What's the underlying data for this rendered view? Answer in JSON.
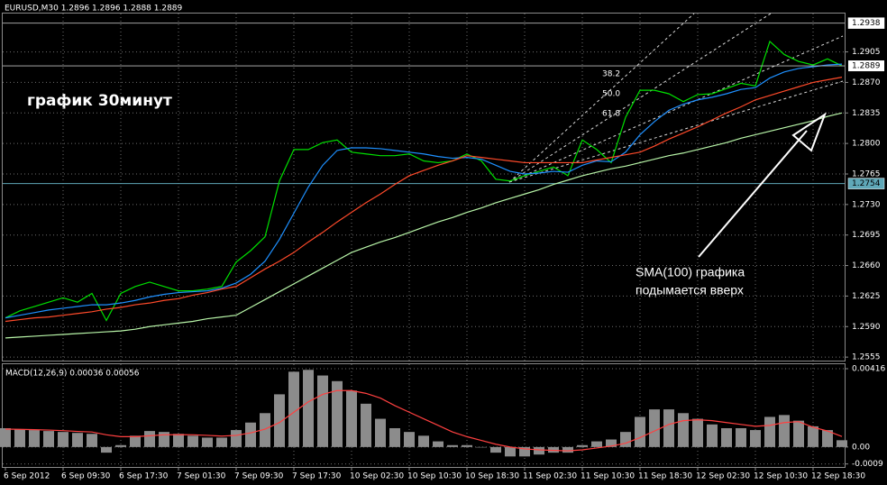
{
  "chart_data": [
    {
      "type": "line",
      "title": "EURUSD,M30  1.2896 1.2896 1.2888 1.2889",
      "categories": [
        "6 Sep 2012",
        null,
        null,
        null,
        "6 Sep 09:30",
        null,
        null,
        null,
        "6 Sep 17:30",
        null,
        null,
        null,
        "7 Sep 01:30",
        null,
        null,
        null,
        "7 Sep 09:30",
        null,
        null,
        null,
        "7 Sep 17:30",
        null,
        null,
        null,
        "10 Sep 02:30",
        null,
        null,
        null,
        "10 Sep 10:30",
        null,
        null,
        null,
        "10 Sep 18:30",
        null,
        null,
        null,
        "11 Sep 02:30",
        null,
        null,
        null,
        "11 Sep 10:30",
        null,
        null,
        null,
        "11 Sep 18:30",
        null,
        null,
        null,
        "12 Sep 02:30",
        null,
        null,
        null,
        "12 Sep 10:30",
        null,
        null,
        null,
        "12 Sep 18:30",
        null,
        null
      ],
      "series": [
        {
          "color": "#00e000",
          "values": [
            1.26,
            1.2608,
            1.2613,
            1.2618,
            1.2623,
            1.2618,
            1.2628,
            1.2597,
            1.2628,
            1.2636,
            1.2641,
            1.2636,
            1.2631,
            1.2631,
            1.2633,
            1.2636,
            1.2664,
            1.2677,
            1.2693,
            1.2757,
            1.2793,
            1.2793,
            1.2801,
            1.2804,
            1.279,
            1.2788,
            1.2786,
            1.2786,
            1.2788,
            1.278,
            1.2778,
            1.278,
            1.2788,
            1.278,
            1.2759,
            1.2757,
            1.2763,
            1.2768,
            1.2773,
            1.2763,
            1.2804,
            1.2793,
            1.2778,
            1.283,
            1.2861,
            1.2861,
            1.2857,
            1.2848,
            1.2856,
            1.2857,
            1.2863,
            1.2869,
            1.2866,
            1.2917,
            1.2902,
            1.2894,
            1.289,
            1.2897,
            1.2889
          ]
        },
        {
          "color": "#1e90ff",
          "values": [
            1.26,
            1.2603,
            1.2606,
            1.2609,
            1.2611,
            1.2613,
            1.2615,
            1.2615,
            1.2617,
            1.262,
            1.2624,
            1.2627,
            1.2629,
            1.263,
            1.2631,
            1.2634,
            1.264,
            1.265,
            1.2665,
            1.269,
            1.272,
            1.275,
            1.2775,
            1.2792,
            1.2795,
            1.2795,
            1.2794,
            1.2792,
            1.279,
            1.2788,
            1.2785,
            1.2783,
            1.2784,
            1.2782,
            1.2775,
            1.2768,
            1.2765,
            1.2766,
            1.2768,
            1.2767,
            1.2775,
            1.278,
            1.2779,
            1.279,
            1.281,
            1.2825,
            1.2838,
            1.2845,
            1.285,
            1.2853,
            1.2857,
            1.2862,
            1.2864,
            1.2875,
            1.2882,
            1.2886,
            1.2888,
            1.289,
            1.2891
          ]
        },
        {
          "color": "#ff4a2a",
          "values": [
            1.2596,
            1.2598,
            1.26,
            1.2601,
            1.2603,
            1.2605,
            1.2607,
            1.261,
            1.2612,
            1.2615,
            1.2617,
            1.262,
            1.2622,
            1.2626,
            1.2629,
            1.2633,
            1.2636,
            1.2646,
            1.2656,
            1.2665,
            1.2675,
            1.2687,
            1.2698,
            1.271,
            1.2721,
            1.2732,
            1.2742,
            1.2753,
            1.2763,
            1.2769,
            1.2775,
            1.278,
            1.2786,
            1.2784,
            1.2782,
            1.278,
            1.2778,
            1.2778,
            1.2778,
            1.2778,
            1.2778,
            1.2781,
            1.2784,
            1.2787,
            1.279,
            1.2797,
            1.2805,
            1.2812,
            1.2819,
            1.2827,
            1.2835,
            1.2842,
            1.285,
            1.2855,
            1.286,
            1.2865,
            1.287,
            1.2873,
            1.2876
          ]
        },
        {
          "color": "#b8f5a8",
          "values": [
            1.2577,
            1.2578,
            1.2579,
            1.258,
            1.2581,
            1.2582,
            1.2583,
            1.2584,
            1.2585,
            1.2587,
            1.259,
            1.2592,
            1.2594,
            1.2596,
            1.2599,
            1.2601,
            1.2603,
            1.2612,
            1.2621,
            1.263,
            1.2639,
            1.2648,
            1.2657,
            1.2666,
            1.2675,
            1.2681,
            1.2687,
            1.2692,
            1.2698,
            1.2704,
            1.271,
            1.2715,
            1.2721,
            1.2726,
            1.2732,
            1.2737,
            1.2742,
            1.2747,
            1.2753,
            1.2758,
            1.2763,
            1.2767,
            1.2771,
            1.2774,
            1.2778,
            1.2782,
            1.2786,
            1.2789,
            1.2793,
            1.2797,
            1.2801,
            1.2806,
            1.281,
            1.2814,
            1.2818,
            1.2822,
            1.2826,
            1.2831,
            1.2835
          ]
        }
      ],
      "ylim": [
        1.2551,
        1.2949
      ],
      "yticks": [
        1.2905,
        {
          "value": 1.287,
          "label": "1.2870"
        },
        1.2835,
        {
          "value": 1.28,
          "label": "1.2800"
        },
        1.2765,
        {
          "value": 1.273,
          "label": "1.2730"
        },
        1.2695,
        {
          "value": 1.266,
          "label": "1.2660"
        },
        1.2625,
        {
          "value": 1.259,
          "label": "1.2590"
        },
        1.2555
      ],
      "grid": true,
      "hlines": [
        {
          "value": 1.2938,
          "color": "#a0a0a0",
          "box": "#ffffff"
        },
        {
          "value": 1.2754,
          "color": "#5fa8b8",
          "box": "#5fa8b8"
        }
      ],
      "last_price": 1.2889,
      "annotations": [
        "график 30минут",
        "SMA(100) графика",
        "подымается вверх"
      ],
      "fib_levels": [
        "38.2",
        "50.0",
        "61.8"
      ]
    },
    {
      "type": "bar",
      "title": "MACD(12,26,9) 0.00036 0.00056",
      "color": "#8c8c8c",
      "values": [
        0.001,
        0.00095,
        0.0009,
        0.00085,
        0.0008,
        0.00075,
        0.0007,
        -0.0003,
        0.0001,
        0.0006,
        0.00085,
        0.0008,
        0.0007,
        0.0006,
        0.0005,
        0.0005,
        0.0009,
        0.0013,
        0.0018,
        0.0028,
        0.004,
        0.0041,
        0.0038,
        0.0035,
        0.003,
        0.0023,
        0.0015,
        0.001,
        0.0008,
        0.0006,
        0.0003,
        0.0001,
        0.0001,
        0.0,
        -0.0003,
        -0.0005,
        -0.0005,
        -0.0004,
        -0.0003,
        -0.0003,
        0.0001,
        0.0003,
        0.0004,
        0.0008,
        0.0016,
        0.002,
        0.002,
        0.0018,
        0.0015,
        0.0012,
        0.001,
        0.001,
        0.0009,
        0.0016,
        0.0017,
        0.0014,
        0.0011,
        0.0009,
        0.00036
      ],
      "signal_color": "#ff4040",
      "signal": [
        0.00095,
        0.00094,
        0.00092,
        0.0009,
        0.00087,
        0.00083,
        0.0008,
        0.00065,
        0.00055,
        0.00055,
        0.0006,
        0.00065,
        0.00066,
        0.00065,
        0.00062,
        0.00058,
        0.00062,
        0.00075,
        0.00095,
        0.0013,
        0.00185,
        0.0024,
        0.0028,
        0.003,
        0.003,
        0.00285,
        0.0026,
        0.0022,
        0.00185,
        0.0015,
        0.00115,
        0.0008,
        0.00055,
        0.00035,
        0.00015,
        0.0,
        -0.0001,
        -0.00015,
        -0.00018,
        -0.0002,
        -0.00015,
        -5e-05,
        5e-05,
        0.0002,
        0.0005,
        0.00085,
        0.0012,
        0.0014,
        0.00145,
        0.0014,
        0.0013,
        0.0012,
        0.0011,
        0.00115,
        0.0013,
        0.00135,
        0.00105,
        0.00085,
        0.00056
      ],
      "ylim": [
        -0.00106,
        0.0044
      ],
      "yticks": [
        0.00416,
        {
          "value": 0,
          "label": "0.00"
        },
        -0.0009
      ],
      "grid": true
    }
  ]
}
